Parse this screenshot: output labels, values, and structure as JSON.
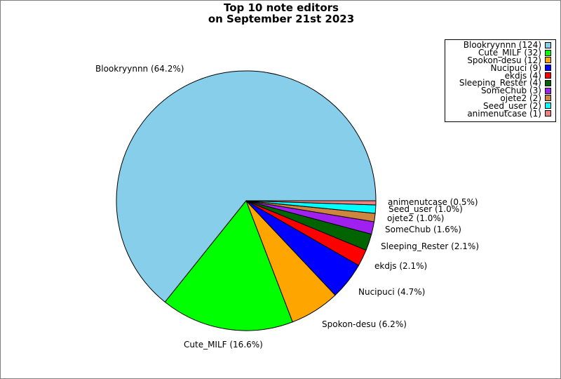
{
  "title_line1": "Top 10 note editors",
  "title_line2": "on September 21st 2023",
  "chart_data": {
    "type": "pie",
    "title": "Top 10 note editors on September 21st 2023",
    "legend_position": "top-right",
    "slices": [
      {
        "name": "Blookryynnn",
        "value": 124,
        "percent_label": "64.2%",
        "legend_label": "Blookryynnn (124)",
        "slice_label": "Blookryynnn (64.2%)",
        "color": "#87ceeb"
      },
      {
        "name": "Cute_MILF",
        "value": 32,
        "percent_label": "16.6%",
        "legend_label": "Cute_MILF (32)",
        "slice_label": "Cute_MILF (16.6%)",
        "color": "#00ff00"
      },
      {
        "name": "Spokon-desu",
        "value": 12,
        "percent_label": "6.2%",
        "legend_label": "Spokon-desu (12)",
        "slice_label": "Spokon-desu (6.2%)",
        "color": "#ffa500"
      },
      {
        "name": "Nucipuci",
        "value": 9,
        "percent_label": "4.7%",
        "legend_label": "Nucipuci (9)",
        "slice_label": "Nucipuci (4.7%)",
        "color": "#0000ff"
      },
      {
        "name": "ekdjs",
        "value": 4,
        "percent_label": "2.1%",
        "legend_label": "ekdjs (4)",
        "slice_label": "ekdjs (2.1%)",
        "color": "#ff0000"
      },
      {
        "name": "Sleeping_Rester",
        "value": 4,
        "percent_label": "2.1%",
        "legend_label": "Sleeping_Rester (4)",
        "slice_label": "Sleeping_Rester (2.1%)",
        "color": "#006400"
      },
      {
        "name": "SomeChub",
        "value": 3,
        "percent_label": "1.6%",
        "legend_label": "SomeChub (3)",
        "slice_label": "SomeChub (1.6%)",
        "color": "#a020f0"
      },
      {
        "name": "ojete2",
        "value": 2,
        "percent_label": "1.0%",
        "legend_label": "ojete2 (2)",
        "slice_label": "ojete2 (1.0%)",
        "color": "#cd853f"
      },
      {
        "name": "Seed_user",
        "value": 2,
        "percent_label": "1.0%",
        "legend_label": "Seed_user (2)",
        "slice_label": "Seed_user (1.0%)",
        "color": "#00ffff"
      },
      {
        "name": "animenutcase",
        "value": 1,
        "percent_label": "0.5%",
        "legend_label": "animenutcase (1)",
        "slice_label": "animenutcase (0.5%)",
        "color": "#f08080"
      }
    ]
  }
}
